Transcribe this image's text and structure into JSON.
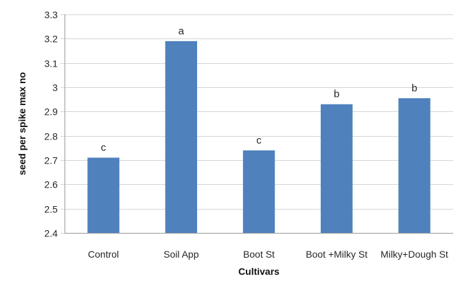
{
  "chart_data": {
    "type": "bar",
    "categories": [
      "Control",
      "Soil App",
      "Boot St",
      "Boot +Milky St",
      "Milky+Dough St"
    ],
    "values": [
      2.71,
      3.19,
      2.74,
      2.93,
      2.955
    ],
    "data_labels": [
      "c",
      "a",
      "c",
      "b",
      "b"
    ],
    "title": "",
    "xlabel": "Cultivars",
    "ylabel": "seed per spike max no",
    "ylim": [
      2.4,
      3.3
    ],
    "yticks": [
      2.4,
      2.5,
      2.6,
      2.7,
      2.8,
      2.9,
      3,
      3.1,
      3.2,
      3.3
    ],
    "ytick_labels": [
      "2.4",
      "2.5",
      "2.6",
      "2.7",
      "2.8",
      "2.9",
      "3",
      "3.1",
      "3.2",
      "3.3"
    ],
    "grid": true,
    "legend": "none",
    "bar_color": "#4f81bd"
  }
}
